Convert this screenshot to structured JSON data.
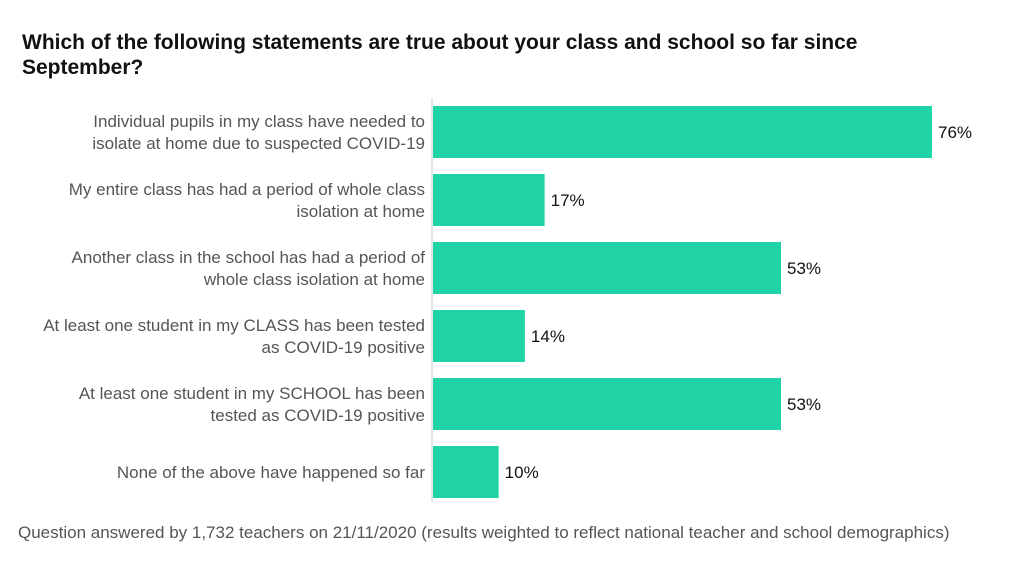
{
  "title": "Which of the following statements are true about your class and school so far since September?",
  "note": "Question answered by 1,732 teachers on 21/11/2020 (results weighted to reflect national teacher and school demographics)",
  "colors": {
    "bar": "#21d4a8",
    "axis": "#c8c8c8",
    "label": "#555555",
    "value": "#111111"
  },
  "chart_data": {
    "type": "bar",
    "orientation": "horizontal",
    "title": "Which of the following statements are true about your class and school so far since September?",
    "categories": [
      [
        "Individual pupils in my class have needed to",
        "isolate at home due to suspected COVID-19"
      ],
      [
        "My entire class has had a period of whole class",
        "isolation at home"
      ],
      [
        "Another class in the school has had a period of",
        "whole class isolation at home"
      ],
      [
        "At least one student in my CLASS has been tested",
        "as COVID-19 positive"
      ],
      [
        "At least one student in my SCHOOL has been",
        "tested as COVID-19 positive"
      ],
      [
        "None of the above have happened so far"
      ]
    ],
    "values": [
      76,
      17,
      53,
      14,
      53,
      10
    ],
    "value_labels": [
      "76%",
      "17%",
      "53%",
      "14%",
      "53%",
      "10%"
    ],
    "unit": "%",
    "xlim": [
      0,
      76
    ],
    "grid": false,
    "legend": "none"
  }
}
